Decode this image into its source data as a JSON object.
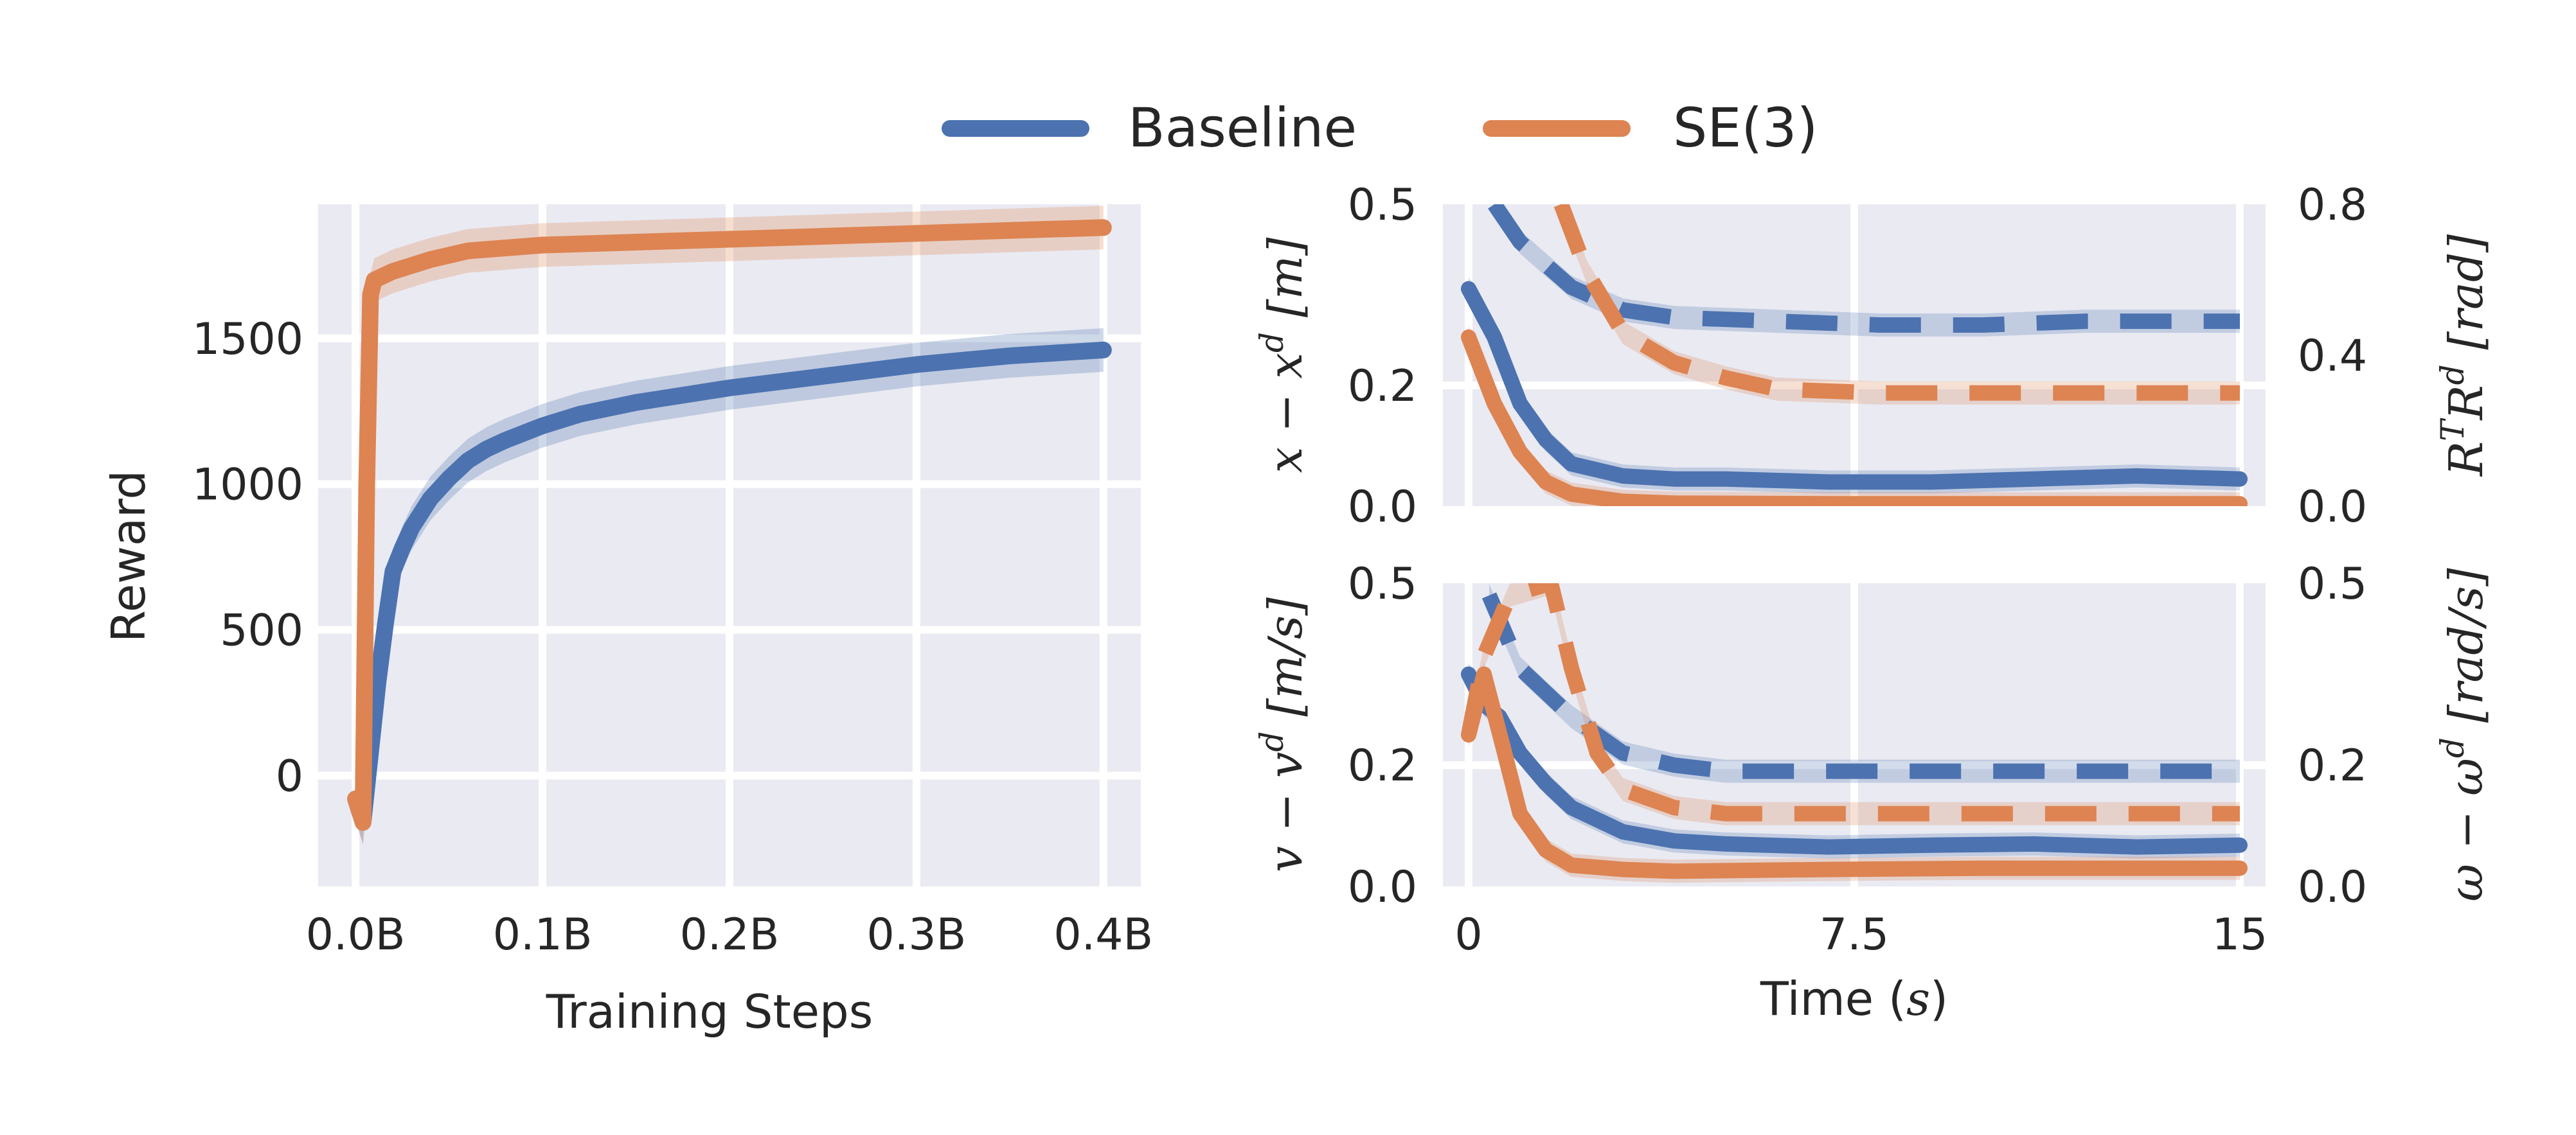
{
  "colors": {
    "baseline": "#4c72b0",
    "se3": "#dd8452",
    "panel_bg": "#eaeaf2",
    "grid": "#ffffff"
  },
  "legend": {
    "items": [
      {
        "label": "Baseline"
      },
      {
        "label": "SE(3)"
      }
    ],
    "placement": "top-center"
  },
  "chart_data": [
    {
      "id": "reward",
      "type": "line",
      "xlabel": "Training Steps",
      "ylabel": "Reward",
      "xlim": [
        -0.02,
        0.42
      ],
      "ylim": [
        -380,
        1960
      ],
      "xticks": [
        0,
        0.1,
        0.2,
        0.3,
        0.4
      ],
      "xtick_labels": [
        "0.0B",
        "0.1B",
        "0.2B",
        "0.3B",
        "0.4B"
      ],
      "yticks": [
        0,
        500,
        1000,
        1500
      ],
      "ytick_labels": [
        "0",
        "500",
        "1000",
        "1500"
      ],
      "grid": true,
      "series": [
        {
          "name": "Baseline",
          "x": [
            0,
            0.004,
            0.008,
            0.012,
            0.016,
            0.02,
            0.025,
            0.03,
            0.04,
            0.05,
            0.06,
            0.07,
            0.08,
            0.1,
            0.12,
            0.15,
            0.18,
            0.2,
            0.25,
            0.3,
            0.35,
            0.4
          ],
          "y": [
            -80,
            -160,
            80,
            320,
            520,
            700,
            780,
            850,
            950,
            1020,
            1080,
            1120,
            1150,
            1200,
            1240,
            1280,
            1310,
            1330,
            1370,
            1410,
            1440,
            1460
          ]
        },
        {
          "name": "SE(3)",
          "x": [
            0,
            0.004,
            0.006,
            0.008,
            0.01,
            0.02,
            0.04,
            0.06,
            0.1,
            0.15,
            0.2,
            0.25,
            0.3,
            0.35,
            0.4
          ],
          "y": [
            -80,
            -160,
            1000,
            1650,
            1700,
            1730,
            1770,
            1800,
            1820,
            1830,
            1840,
            1850,
            1860,
            1870,
            1880
          ]
        }
      ]
    },
    {
      "id": "pose",
      "type": "line",
      "xlabel": "",
      "ylabel_left": "x − x^d [m]",
      "ylabel_right": "R^T R^d [rad]",
      "xlim": [
        -0.5,
        15.5
      ],
      "ylim_left": [
        0,
        0.5
      ],
      "ylim_right": [
        0,
        0.8
      ],
      "yticks_left": [
        "0.0",
        "0.2",
        "0.5"
      ],
      "yticks_right": [
        "0.0",
        "0.4",
        "0.8"
      ],
      "grid": true,
      "series": [
        {
          "name": "Baseline position",
          "axis": "left",
          "style": "solid",
          "x": [
            0,
            0.5,
            1,
            1.5,
            2,
            3,
            4,
            5,
            7,
            9,
            11,
            13,
            15
          ],
          "y": [
            0.36,
            0.28,
            0.17,
            0.11,
            0.07,
            0.05,
            0.045,
            0.045,
            0.04,
            0.04,
            0.045,
            0.05,
            0.045
          ]
        },
        {
          "name": "SE(3) position",
          "axis": "left",
          "style": "solid",
          "x": [
            0,
            0.5,
            1,
            1.5,
            2,
            3,
            4,
            7,
            10,
            15
          ],
          "y": [
            0.28,
            0.17,
            0.09,
            0.04,
            0.02,
            0.008,
            0.005,
            0.004,
            0.004,
            0.004
          ]
        },
        {
          "name": "Baseline rotation",
          "axis": "right",
          "style": "dashed",
          "x": [
            0.5,
            1,
            2,
            3,
            4,
            6,
            8,
            10,
            12,
            15
          ],
          "y": [
            0.8,
            0.7,
            0.58,
            0.52,
            0.5,
            0.49,
            0.48,
            0.48,
            0.49,
            0.49
          ]
        },
        {
          "name": "SE(3) rotation",
          "axis": "right",
          "style": "dashed",
          "x": [
            1.8,
            2.3,
            3,
            4,
            5,
            6,
            8,
            11,
            15
          ],
          "y": [
            0.8,
            0.62,
            0.46,
            0.38,
            0.34,
            0.31,
            0.3,
            0.3,
            0.3
          ]
        }
      ]
    },
    {
      "id": "velocity",
      "type": "line",
      "xlabel": "Time (s)",
      "ylabel_left": "v − v^d [m/s]",
      "ylabel_right": "ω − ω^d [rad/s]",
      "xlim": [
        -0.5,
        15.5
      ],
      "ylim_left": [
        0,
        0.5
      ],
      "ylim_right": [
        0,
        0.5
      ],
      "xticks": [
        0,
        7.5,
        15
      ],
      "xtick_labels": [
        "0",
        "7.5",
        "15"
      ],
      "yticks_left": [
        "0.0",
        "0.2",
        "0.5"
      ],
      "yticks_right": [
        "0.0",
        "0.2",
        "0.5"
      ],
      "grid": true,
      "series": [
        {
          "name": "Baseline linear velocity",
          "axis": "left",
          "style": "solid",
          "x": [
            0,
            0.3,
            0.6,
            1,
            1.5,
            2,
            3,
            4,
            5,
            7,
            9,
            11,
            13,
            15
          ],
          "y": [
            0.35,
            0.3,
            0.28,
            0.22,
            0.17,
            0.13,
            0.09,
            0.075,
            0.07,
            0.065,
            0.068,
            0.07,
            0.065,
            0.068
          ]
        },
        {
          "name": "SE(3) linear velocity",
          "axis": "left",
          "style": "solid",
          "x": [
            0,
            0.3,
            0.7,
            1,
            1.5,
            2,
            3,
            4,
            7,
            10,
            15
          ],
          "y": [
            0.25,
            0.35,
            0.22,
            0.12,
            0.06,
            0.035,
            0.028,
            0.025,
            0.028,
            0.03,
            0.03
          ]
        },
        {
          "name": "Baseline angular velocity",
          "axis": "right",
          "style": "dashed",
          "x": [
            0.4,
            1,
            2,
            3,
            4,
            5,
            7,
            10,
            15
          ],
          "y": [
            0.48,
            0.36,
            0.28,
            0.22,
            0.2,
            0.19,
            0.19,
            0.19,
            0.19
          ]
        },
        {
          "name": "SE(3) angular velocity",
          "axis": "right",
          "style": "dashed",
          "x": [
            0,
            0.3,
            0.8,
            1.6,
            2,
            2.5,
            3,
            4,
            5,
            7,
            10,
            15
          ],
          "y": [
            0.25,
            0.38,
            0.48,
            0.5,
            0.36,
            0.22,
            0.16,
            0.13,
            0.12,
            0.12,
            0.12,
            0.12
          ]
        }
      ]
    }
  ]
}
